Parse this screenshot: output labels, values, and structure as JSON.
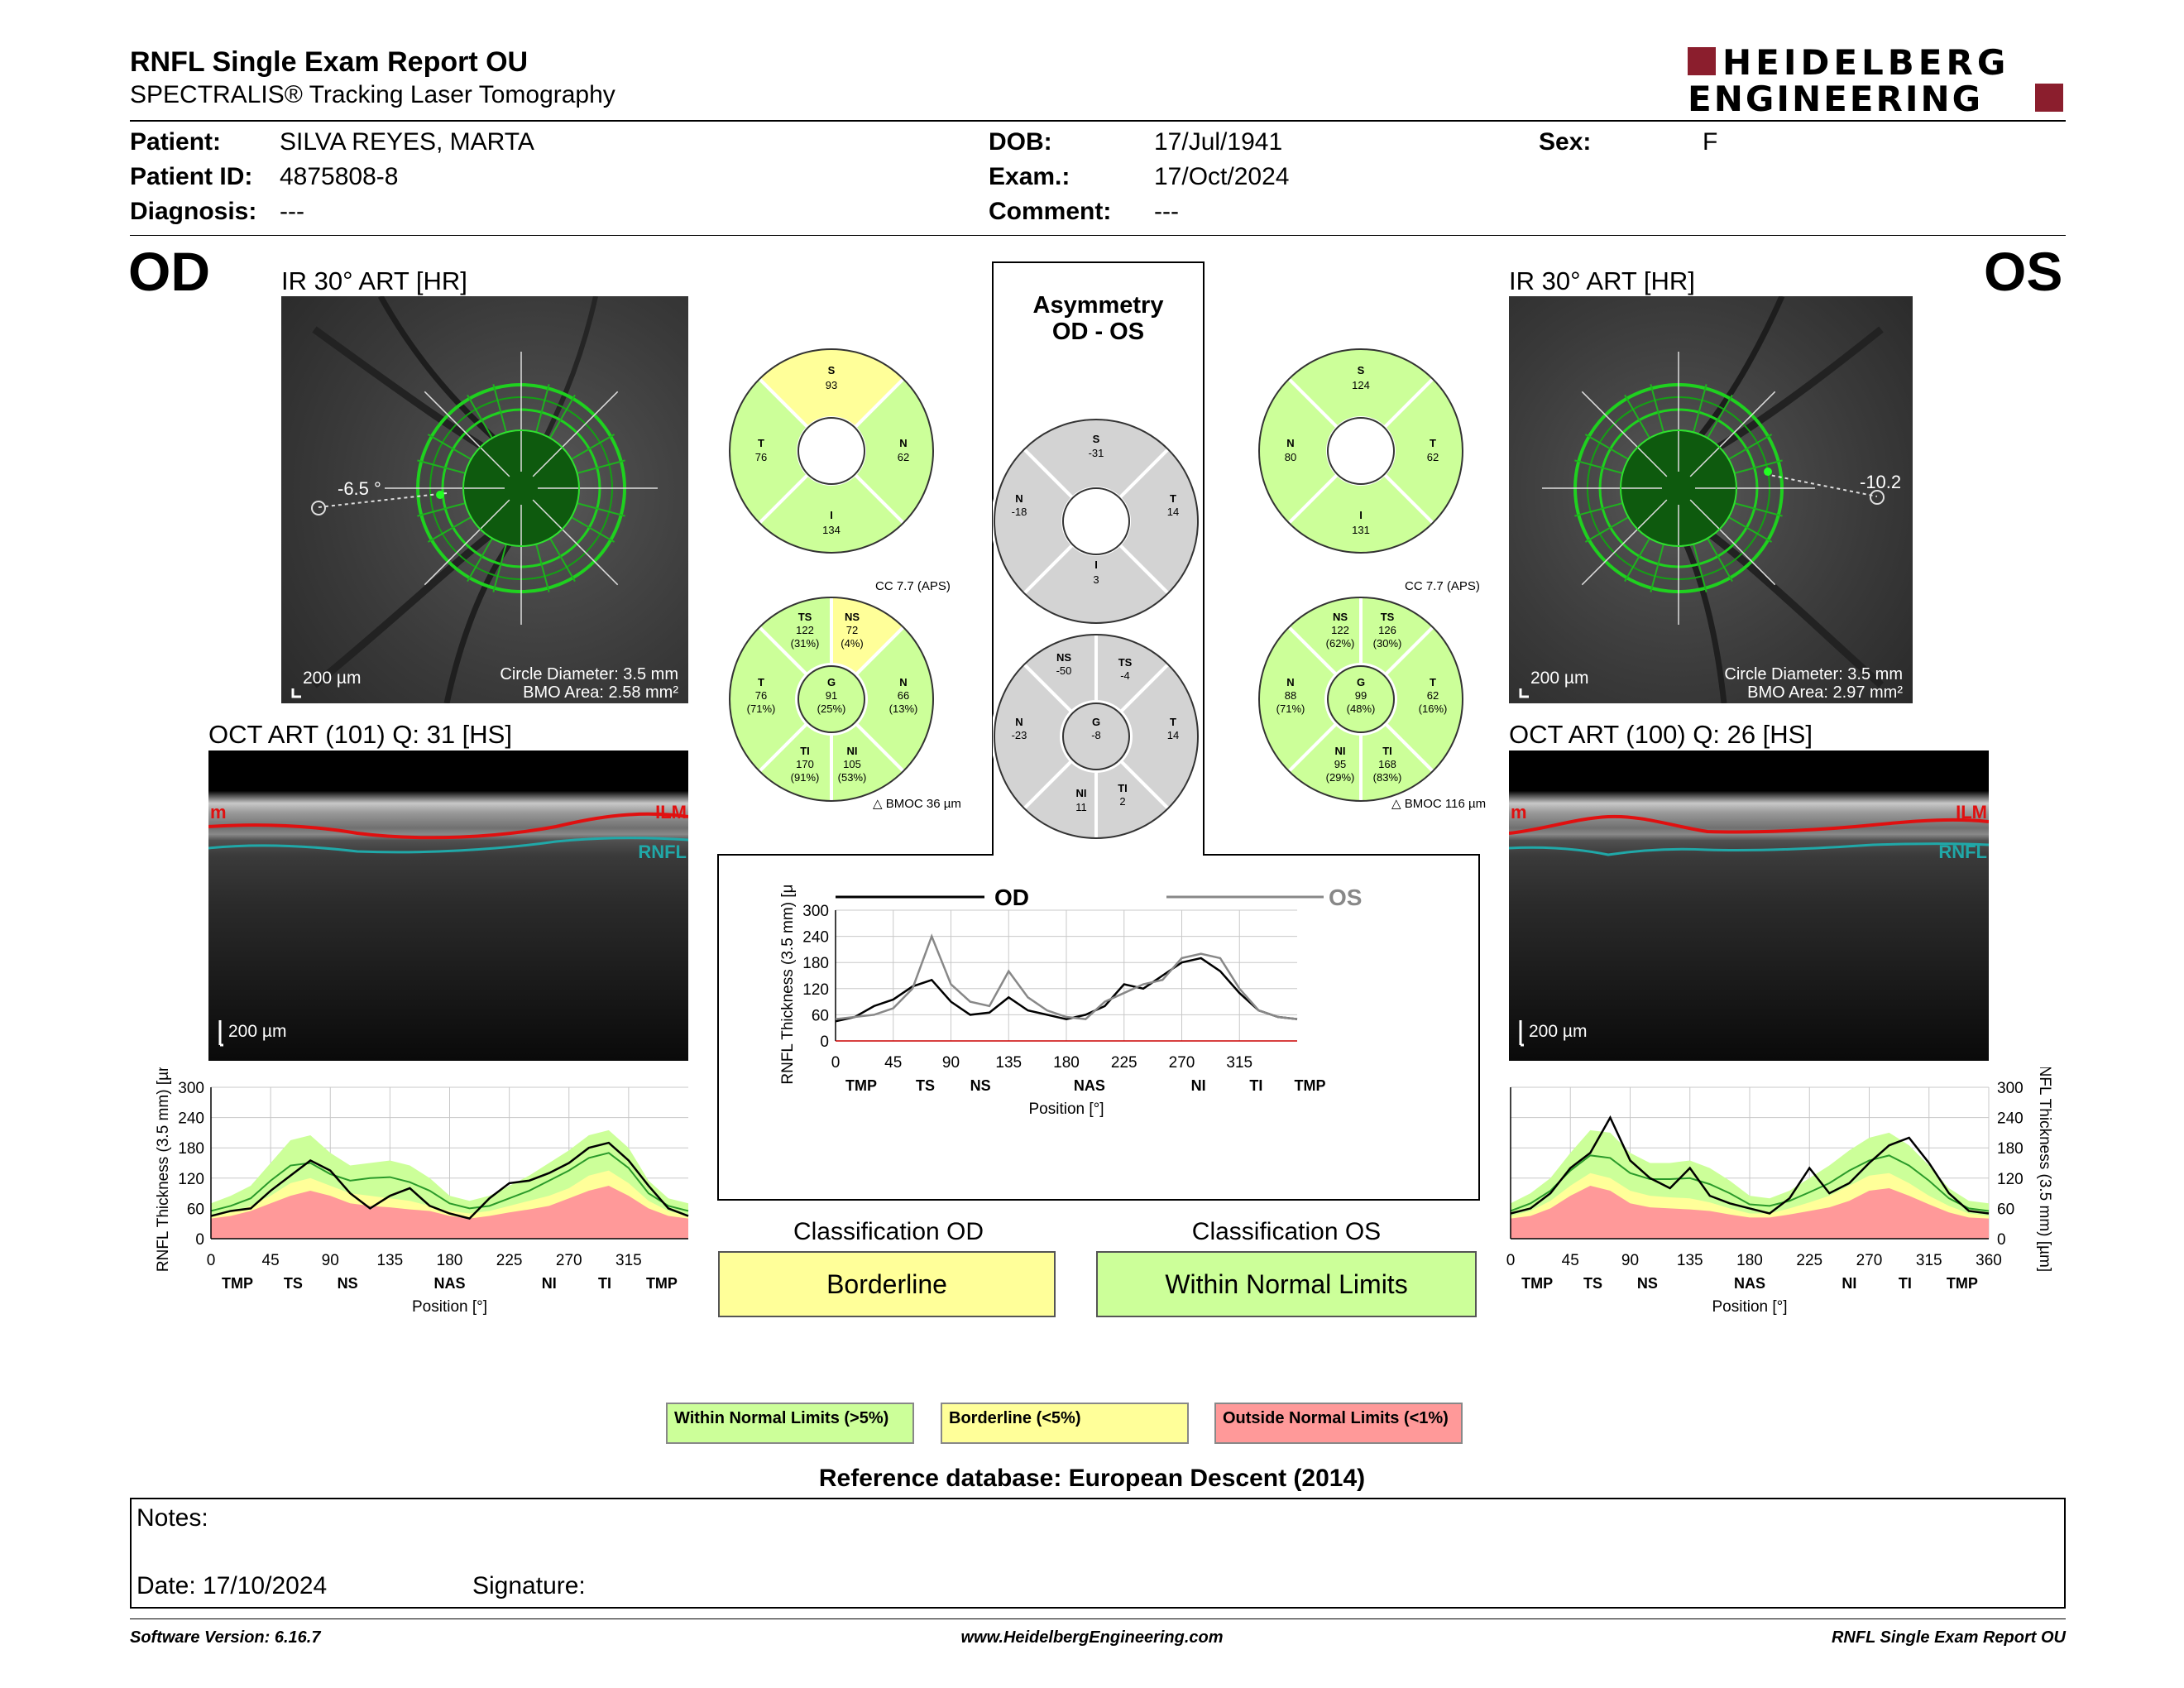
{
  "header": {
    "title": "RNFL Single Exam Report OU",
    "subtitle": "SPECTRALIS® Tracking Laser Tomography",
    "logo_line1": "HEIDELBERG",
    "logo_line2": "ENGINEERING"
  },
  "patient": {
    "patient_label": "Patient:",
    "patient_value": "SILVA REYES, MARTA",
    "id_label": "Patient ID:",
    "id_value": "4875808-8",
    "diagnosis_label": "Diagnosis:",
    "diagnosis_value": "---",
    "dob_label": "DOB:",
    "dob_value": "17/Jul/1941",
    "exam_label": "Exam.:",
    "exam_value": "17/Oct/2024",
    "comment_label": "Comment:",
    "comment_value": "---",
    "sex_label": "Sex:",
    "sex_value": "F"
  },
  "od": {
    "eye": "OD",
    "ir_title": "IR 30° ART [HR]",
    "angle": "-6.5 °",
    "scale": "200 µm",
    "circle_diameter": "Circle Diameter: 3.5 mm",
    "bmo_area": "BMO Area: 2.58 mm²",
    "oct_title": "OCT ART (101) Q: 31 [HS]",
    "oct_scale": "200 µm",
    "ilm": "ILM",
    "ilm_left": "m",
    "rnfl": "RNFL",
    "sectors6": {
      "s": "S",
      "s_val": "93",
      "t": "T",
      "t_val": "76",
      "n": "N",
      "n_val": "62",
      "i": "I",
      "i_val": "134"
    },
    "cc": "CC 7.7 (APS)",
    "sectors": {
      "ts": "TS",
      "ts_val": "122",
      "ts_pct": "(31%)",
      "ns": "NS",
      "ns_val": "72",
      "ns_pct": "(4%)",
      "t": "T",
      "t_val": "76",
      "t_pct": "(71%)",
      "g": "G",
      "g_val": "91",
      "g_pct": "(25%)",
      "n": "N",
      "n_val": "66",
      "n_pct": "(13%)",
      "ti": "TI",
      "ti_val": "170",
      "ti_pct": "(91%)",
      "ni": "NI",
      "ni_val": "105",
      "ni_pct": "(53%)"
    },
    "bmoc": "BMOC 36 µm",
    "classification_title": "Classification OD",
    "classification": "Borderline"
  },
  "os": {
    "eye": "OS",
    "ir_title": "IR 30° ART [HR]",
    "angle": "-10.2",
    "scale": "200 µm",
    "circle_diameter": "Circle Diameter: 3.5 mm",
    "bmo_area": "BMO Area: 2.97 mm²",
    "oct_title": "OCT ART (100) Q: 26 [HS]",
    "oct_scale": "200 µm",
    "ilm": "ILM",
    "ilm_left": "m",
    "rnfl": "RNFL",
    "sectors6": {
      "s": "S",
      "s_val": "124",
      "n": "N",
      "n_val": "80",
      "t": "T",
      "t_val": "62",
      "i": "I",
      "i_val": "131"
    },
    "cc": "CC 7.7 (APS)",
    "sectors": {
      "ns": "NS",
      "ns_val": "122",
      "ns_pct": "(62%)",
      "ts": "TS",
      "ts_val": "126",
      "ts_pct": "(30%)",
      "n": "N",
      "n_val": "88",
      "n_pct": "(71%)",
      "g": "G",
      "g_val": "99",
      "g_pct": "(48%)",
      "t": "T",
      "t_val": "62",
      "t_pct": "(16%)",
      "ni": "NI",
      "ni_val": "95",
      "ni_pct": "(29%)",
      "ti": "TI",
      "ti_val": "168",
      "ti_pct": "(83%)"
    },
    "bmoc": "BMOC 116 µm",
    "classification_title": "Classification OS",
    "classification": "Within Normal Limits"
  },
  "asymmetry": {
    "title1": "Asymmetry",
    "title2": "OD - OS",
    "six": {
      "s": "S",
      "s_val": "-31",
      "n": "N",
      "n_val": "-18",
      "t": "T",
      "t_val": "14",
      "i": "I",
      "i_val": "3"
    },
    "seven": {
      "ns": "NS",
      "ns_val": "-50",
      "ts": "TS",
      "ts_val": "-4",
      "n": "N",
      "n_val": "-23",
      "g": "G",
      "g_val": "-8",
      "t": "T",
      "t_val": "14",
      "ni": "NI",
      "ni_val": "11",
      "ti": "TI",
      "ti_val": "2"
    }
  },
  "colors": {
    "green": "#ccff99",
    "yellow": "#ffff99",
    "red": "#ff9999",
    "gray": "#d3d3d3",
    "od_line": "#000000",
    "os_line": "#888888"
  },
  "chart_data": [
    {
      "type": "line",
      "id": "od",
      "title": "",
      "xlabel": "Position [°]",
      "ylabel": "RNFL Thickness (3.5 mm) [µm]",
      "xlim": [
        0,
        360
      ],
      "ylim": [
        0,
        300
      ],
      "x_ticks": [
        0,
        45,
        90,
        135,
        180,
        225,
        270,
        315
      ],
      "y_ticks": [
        0,
        60,
        120,
        180,
        240,
        300
      ],
      "sector_labels": [
        "TMP",
        "TS",
        "NS",
        "NAS",
        "NI",
        "TI",
        "TMP"
      ],
      "sector_positions": [
        20,
        62,
        103,
        180,
        255,
        297,
        340
      ],
      "x": [
        0,
        15,
        30,
        45,
        60,
        75,
        90,
        105,
        120,
        135,
        150,
        165,
        180,
        195,
        210,
        225,
        240,
        255,
        270,
        285,
        300,
        315,
        330,
        345,
        360
      ],
      "bands": {
        "red": [
          40,
          45,
          55,
          70,
          85,
          95,
          85,
          70,
          65,
          62,
          58,
          55,
          45,
          40,
          45,
          52,
          58,
          65,
          80,
          95,
          105,
          85,
          60,
          45,
          40
        ],
        "yellow": [
          45,
          52,
          65,
          85,
          110,
          120,
          105,
          90,
          85,
          80,
          75,
          65,
          55,
          50,
          55,
          65,
          75,
          85,
          100,
          125,
          135,
          110,
          75,
          55,
          45
        ],
        "green": [
          70,
          85,
          105,
          150,
          195,
          205,
          170,
          145,
          150,
          155,
          145,
          120,
          85,
          75,
          85,
          105,
          125,
          150,
          175,
          205,
          215,
          180,
          115,
          80,
          70
        ]
      },
      "median": [
        55,
        65,
        80,
        115,
        145,
        150,
        128,
        115,
        120,
        122,
        112,
        95,
        70,
        60,
        65,
        80,
        95,
        115,
        135,
        160,
        170,
        140,
        90,
        65,
        55
      ],
      "series": [
        {
          "name": "",
          "values": [
            45,
            55,
            60,
            95,
            125,
            155,
            135,
            90,
            60,
            85,
            100,
            65,
            50,
            40,
            80,
            110,
            115,
            130,
            150,
            180,
            190,
            155,
            105,
            60,
            45
          ]
        }
      ]
    },
    {
      "type": "line",
      "id": "os",
      "title": "",
      "xlabel": "Position [°]",
      "ylabel": "RNFL Thickness (3.5 mm) [µm]",
      "xlim": [
        0,
        360
      ],
      "ylim": [
        0,
        300
      ],
      "x_ticks": [
        0,
        45,
        90,
        135,
        180,
        225,
        270,
        315,
        360
      ],
      "y_ticks": [
        0,
        60,
        120,
        180,
        240,
        300
      ],
      "sector_labels": [
        "TMP",
        "TS",
        "NS",
        "NAS",
        "NI",
        "TI",
        "TMP"
      ],
      "sector_positions": [
        20,
        62,
        103,
        180,
        255,
        297,
        340
      ],
      "x": [
        0,
        15,
        30,
        45,
        60,
        75,
        90,
        105,
        120,
        135,
        150,
        165,
        180,
        195,
        210,
        225,
        240,
        255,
        270,
        285,
        300,
        315,
        330,
        345,
        360
      ],
      "bands": {
        "red": [
          40,
          45,
          60,
          85,
          105,
          95,
          70,
          62,
          60,
          58,
          55,
          48,
          42,
          42,
          48,
          55,
          62,
          75,
          95,
          100,
          85,
          68,
          52,
          42,
          40
        ],
        "yellow": [
          45,
          55,
          75,
          105,
          130,
          120,
          95,
          85,
          82,
          80,
          72,
          60,
          50,
          50,
          60,
          72,
          85,
          105,
          125,
          130,
          110,
          85,
          65,
          50,
          45
        ],
        "green": [
          70,
          90,
          120,
          170,
          215,
          210,
          170,
          150,
          150,
          155,
          140,
          115,
          85,
          80,
          95,
          120,
          145,
          175,
          200,
          210,
          185,
          145,
          100,
          75,
          70
        ]
      },
      "median": [
        55,
        70,
        95,
        135,
        165,
        160,
        130,
        118,
        118,
        120,
        108,
        90,
        68,
        65,
        75,
        92,
        110,
        135,
        155,
        165,
        145,
        115,
        80,
        60,
        55
      ],
      "series": [
        {
          "name": "",
          "values": [
            50,
            60,
            90,
            140,
            170,
            240,
            155,
            120,
            100,
            140,
            85,
            70,
            60,
            50,
            80,
            140,
            90,
            110,
            150,
            185,
            200,
            150,
            90,
            55,
            50
          ]
        }
      ]
    },
    {
      "type": "line",
      "id": "asym",
      "title": "",
      "xlabel": "Position [°]",
      "ylabel": "RNFL Thickness (3.5 mm) [µm]",
      "xlim": [
        0,
        360
      ],
      "ylim": [
        0,
        300
      ],
      "x_ticks": [
        0,
        45,
        90,
        135,
        180,
        225,
        270,
        315
      ],
      "y_ticks": [
        0,
        60,
        120,
        180,
        240,
        300
      ],
      "sector_labels": [
        "TMP",
        "TS",
        "NS",
        "NAS",
        "NI",
        "TI",
        "TMP"
      ],
      "sector_positions": [
        20,
        70,
        113,
        198,
        283,
        328,
        370
      ],
      "x": [
        0,
        15,
        30,
        45,
        60,
        75,
        90,
        105,
        120,
        135,
        150,
        165,
        180,
        195,
        210,
        225,
        240,
        255,
        270,
        285,
        300,
        315,
        330,
        345,
        360
      ],
      "legend_od": "OD",
      "legend_os": "OS",
      "series": [
        {
          "name": "OD",
          "values": [
            45,
            55,
            80,
            95,
            125,
            140,
            90,
            60,
            65,
            100,
            70,
            60,
            50,
            60,
            80,
            130,
            120,
            150,
            180,
            190,
            160,
            110,
            70,
            55,
            50
          ]
        },
        {
          "name": "OS",
          "values": [
            50,
            55,
            60,
            75,
            120,
            240,
            130,
            90,
            80,
            160,
            100,
            70,
            55,
            50,
            90,
            110,
            130,
            140,
            190,
            200,
            190,
            120,
            70,
            55,
            50
          ]
        }
      ]
    }
  ],
  "legend": {
    "wnl": "Within Normal Limits (>5%)",
    "borderline": "Borderline (<5%)",
    "onl": "Outside Normal Limits (<1%)"
  },
  "reference": "Reference database: European Descent (2014)",
  "notes": {
    "notes_label": "Notes:",
    "date_label": "Date: 17/10/2024",
    "signature_label": "Signature:"
  },
  "footer": {
    "software": "Software Version: 6.16.7",
    "website": "www.HeidelbergEngineering.com",
    "report": "RNFL Single Exam Report OU"
  }
}
